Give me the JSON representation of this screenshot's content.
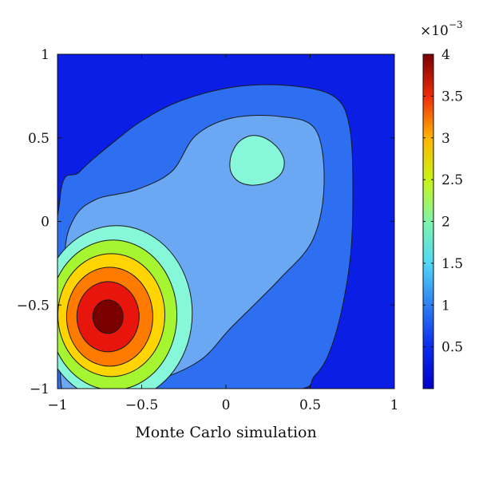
{
  "chart_data": {
    "type": "heatmap",
    "subtype": "filled-contour",
    "title": "",
    "xlabel": "Monte Carlo simulation",
    "ylabel": "",
    "xlim": [
      -1,
      1
    ],
    "ylim": [
      -1,
      1
    ],
    "x_ticks": [
      -1,
      -0.5,
      0,
      0.5,
      1
    ],
    "x_tick_labels": [
      "−1",
      "−0.5",
      "0",
      "0.5",
      "1"
    ],
    "y_ticks": [
      -1,
      -0.5,
      0,
      0.5,
      1
    ],
    "y_tick_labels": [
      "−1",
      "−0.5",
      "0",
      "0.5",
      "1"
    ],
    "grid": false,
    "colormap": "jet",
    "contour_levels": [
      0.5,
      1.0,
      1.5,
      2.0,
      2.5,
      3.0,
      3.5
    ],
    "level_colors": [
      "#0a1ee6",
      "#2d6ff0",
      "#6aa8f4",
      "#86f7d9",
      "#a6f531",
      "#ffd400",
      "#ff7b00",
      "#e8150c",
      "#7a0000"
    ],
    "density_peaks": [
      {
        "x": -0.7,
        "y": -0.57,
        "peak_value": 4.0
      },
      {
        "x": 0.18,
        "y": 0.36,
        "peak_value": 1.5
      }
    ],
    "colorbar": {
      "scale_label": "×10",
      "scale_exponent": "−3",
      "min": 0,
      "max": 4,
      "ticks": [
        0.5,
        1,
        1.5,
        2,
        2.5,
        3,
        3.5,
        4
      ],
      "tick_labels": [
        "0.5",
        "1",
        "1.5",
        "2",
        "2.5",
        "3",
        "3.5",
        "4"
      ]
    }
  }
}
